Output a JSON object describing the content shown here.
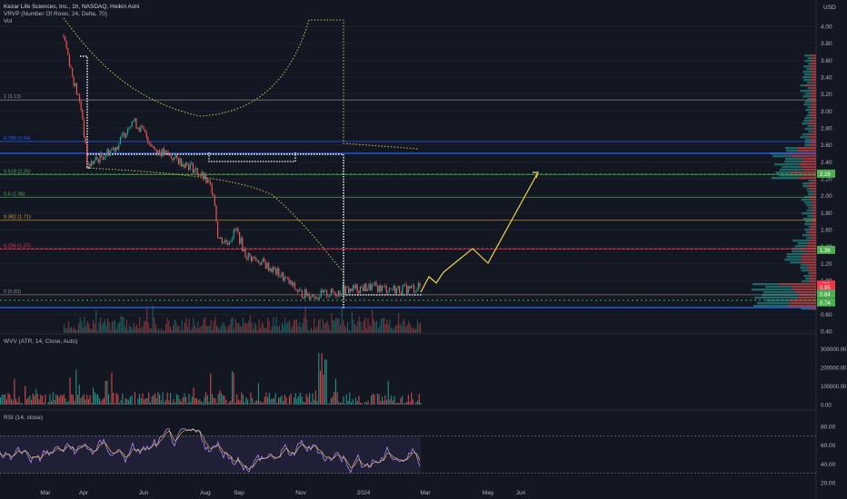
{
  "header": {
    "title": "Kezar Life Sciences, Inc., 1h, NASDAQ, Heikin Ashi",
    "indicators": [
      "VRVP (Number Of Rows, 24, Delta, 70)",
      "Vol"
    ]
  },
  "currency": "USD",
  "price_axis": [
    "4.00",
    "3.80",
    "3.60",
    "3.40",
    "3.20",
    "3.00",
    "2.80",
    "2.60",
    "2.40",
    "2.20",
    "2.00",
    "1.80",
    "1.60",
    "1.40",
    "1.20",
    "1.00",
    "0.80",
    "0.60",
    "0.40"
  ],
  "fib_levels": [
    {
      "label": "1 (3.13)",
      "price": 3.13,
      "color": "#8d8d8d"
    },
    {
      "label": "0.786 (2.64)",
      "price": 2.64,
      "color": "#2962ff"
    },
    {
      "label": "0.618 (2.25)",
      "price": 2.25,
      "color": "#4caf50"
    },
    {
      "label": "0.5 (1.98)",
      "price": 1.98,
      "color": "#4caf50"
    },
    {
      "label": "0.382 (1.71)",
      "price": 1.71,
      "color": "#e0a030"
    },
    {
      "label": "0.236 (1.37)",
      "price": 1.37,
      "color": "#f23645"
    },
    {
      "label": "0 (0.83)",
      "price": 0.83,
      "color": "#8d8d8d"
    }
  ],
  "price_tags": [
    {
      "text": "2.26",
      "price": 2.26,
      "color": "#4caf50"
    },
    {
      "text": "1.36",
      "price": 1.36,
      "color": "#4caf50"
    },
    {
      "text": "KZR",
      "price": 0.95,
      "color": "#f23645"
    },
    {
      "text": "0.95",
      "price": 0.92,
      "color": "#f23645"
    },
    {
      "text": "0.84",
      "price": 0.84,
      "color": "#4caf50"
    },
    {
      "text": "0.74",
      "price": 0.74,
      "color": "#4caf50"
    }
  ],
  "wvv": {
    "label": "WVV (ATR, 14, Close, Auto)",
    "axis": [
      "300000.00",
      "200000.00",
      "100000.00",
      "0.00"
    ]
  },
  "rsi": {
    "label": "RSI (14, close)",
    "axis": [
      "80.00",
      "60.00",
      "40.00",
      "20.00"
    ]
  },
  "time_axis": [
    "Mar",
    "Apr",
    "Jun",
    "Aug",
    "Sep",
    "Nov",
    "2024",
    "Mar",
    "May",
    "Jun"
  ],
  "colors": {
    "up": "#26a69a",
    "down": "#ef5350",
    "projection": "#f0d24a",
    "rsi": "#b388ff"
  }
}
